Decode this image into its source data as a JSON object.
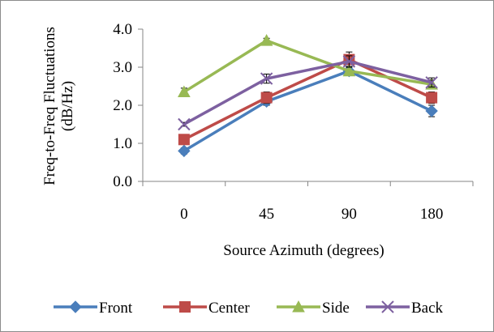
{
  "chart_data": {
    "type": "line",
    "title": "",
    "xlabel": "Source Azimuth (degrees)",
    "ylabel_lines": [
      "Freq-to-Freq Fluctuations",
      "(dB/Hz)"
    ],
    "categories": [
      "0",
      "45",
      "90",
      "180"
    ],
    "ylim": [
      0,
      4
    ],
    "yticks": [
      "0.0",
      "1.0",
      "2.0",
      "3.0",
      "4.0"
    ],
    "grid": false,
    "legend_position": "bottom",
    "series": [
      {
        "name": "Front",
        "color": "#4a7ebb",
        "marker": "diamond",
        "values": [
          0.8,
          2.1,
          2.9,
          1.85
        ],
        "errors": [
          0.08,
          0.1,
          0.1,
          0.15
        ]
      },
      {
        "name": "Center",
        "color": "#be4b48",
        "marker": "square",
        "values": [
          1.1,
          2.2,
          3.2,
          2.2
        ],
        "errors": [
          0.08,
          0.15,
          0.2,
          0.15
        ]
      },
      {
        "name": "Side",
        "color": "#98b954",
        "marker": "triangle",
        "values": [
          2.35,
          3.7,
          2.9,
          2.55
        ],
        "errors": [
          0.1,
          0.06,
          0.12,
          0.12
        ]
      },
      {
        "name": "Back",
        "color": "#7d60a0",
        "marker": "x",
        "values": [
          1.5,
          2.7,
          3.15,
          2.6
        ],
        "errors": [
          0.05,
          0.12,
          0.15,
          0.12
        ]
      }
    ]
  }
}
